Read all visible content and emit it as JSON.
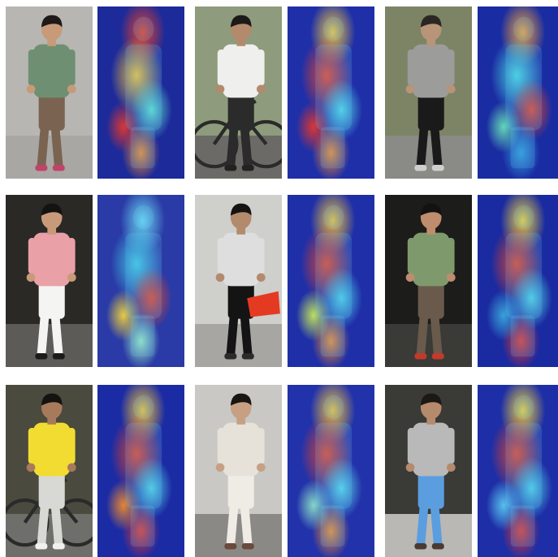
{
  "figure": {
    "rows": [
      {
        "pairs": [
          {
            "photo": {
              "bg": "#b7b6b2",
              "ground": "#a9a7a3",
              "skin": "#c89a78",
              "hair": "#1d1a18",
              "top": "#6f8f72",
              "bottom": "#7a6350",
              "shoe": "#c0436a",
              "prop": ""
            },
            "heatmap": {
              "base": "#1c2a9a",
              "hotspots": [
                "#e8412a",
                "#f3c23a",
                "#5fe0d0",
                "#f08a2e",
                "#e3372e"
              ]
            }
          },
          {
            "photo": {
              "bg": "#8e9b7c",
              "ground": "#6b6a66",
              "skin": "#b48a6c",
              "hair": "#1c1a18",
              "top": "#efefee",
              "bottom": "#2b2b2b",
              "shoe": "#222222",
              "prop": "bicycle"
            },
            "heatmap": {
              "base": "#1f2fa8",
              "hotspots": [
                "#f2c83c",
                "#e9452c",
                "#51d8e6",
                "#f08a2e",
                "#e3372e"
              ]
            }
          },
          {
            "photo": {
              "bg": "#7d8466",
              "ground": "#8a8a86",
              "skin": "#b89478",
              "hair": "#2a2723",
              "top": "#9c9c9a",
              "bottom": "#1a1a1a",
              "shoe": "#cfcfcf",
              "prop": ""
            },
            "heatmap": {
              "base": "#1a2ca2",
              "hotspots": [
                "#f0a33a",
                "#48d6e0",
                "#e4452c",
                "#2f9ad8",
                "#66e0b8"
              ]
            }
          }
        ]
      },
      {
        "pairs": [
          {
            "photo": {
              "bg": "#2a2926",
              "ground": "#5c5b57",
              "skin": "#c99a7a",
              "hair": "#151311",
              "top": "#e9a0a6",
              "bottom": "#f4f4f2",
              "shoe": "#1b1b1b",
              "prop": ""
            },
            "heatmap": {
              "base": "#2a3aa6",
              "hotspots": [
                "#6ad8f0",
                "#40c8e2",
                "#e4452c",
                "#9be8c0",
                "#f0d23a"
              ]
            }
          },
          {
            "photo": {
              "bg": "#cfcfcc",
              "ground": "#a7a6a3",
              "skin": "#b38a6c",
              "hair": "#161412",
              "top": "#dedede",
              "bottom": "#141414",
              "shoe": "#2a2a2a",
              "prop": "red-bag"
            },
            "heatmap": {
              "base": "#1f2fa8",
              "hotspots": [
                "#f0c23c",
                "#e4452c",
                "#4dd0e6",
                "#f08a2e",
                "#c6e85a"
              ]
            }
          },
          {
            "photo": {
              "bg": "#1c1c1a",
              "ground": "#3a3a37",
              "skin": "#c08c6e",
              "hair": "#141210",
              "top": "#7e9a6c",
              "bottom": "#6a5a4c",
              "shoe": "#c23a2c",
              "prop": ""
            },
            "heatmap": {
              "base": "#1a2aa0",
              "hotspots": [
                "#f0d23a",
                "#e4452c",
                "#52d2e4",
                "#e3372e",
                "#3aa8dc"
              ]
            }
          }
        ]
      },
      {
        "pairs": [
          {
            "photo": {
              "bg": "#4a4a3e",
              "ground": "#6e6e6a",
              "skin": "#a87a5c",
              "hair": "#151310",
              "top": "#f2dc32",
              "bottom": "#d8d8d4",
              "shoe": "#f0f0ee",
              "prop": "bicycle"
            },
            "heatmap": {
              "base": "#1b2ba4",
              "hotspots": [
                "#f0c23a",
                "#e4452c",
                "#52d2e4",
                "#e3372e",
                "#f08a2e"
              ]
            }
          },
          {
            "photo": {
              "bg": "#c9c8c4",
              "ground": "#8a8986",
              "skin": "#c7a083",
              "hair": "#181512",
              "top": "#e7e2d9",
              "bottom": "#efece6",
              "shoe": "#6a4a3a",
              "prop": ""
            },
            "heatmap": {
              "base": "#2232aa",
              "hotspots": [
                "#f0c23c",
                "#e4452c",
                "#58d6e8",
                "#f08a2e",
                "#8be0c8"
              ]
            }
          },
          {
            "photo": {
              "bg": "#3a3a36",
              "ground": "#b9b8b4",
              "skin": "#b68a6c",
              "hair": "#1b1816",
              "top": "#b9b9b9",
              "bottom": "#5a9ee0",
              "shoe": "#4a3a30",
              "prop": ""
            },
            "heatmap": {
              "base": "#1d2ea6",
              "hotspots": [
                "#f0d23a",
                "#e4452c",
                "#4fd0e6",
                "#e3372e",
                "#5ac8f0"
              ]
            }
          }
        ]
      }
    ]
  }
}
